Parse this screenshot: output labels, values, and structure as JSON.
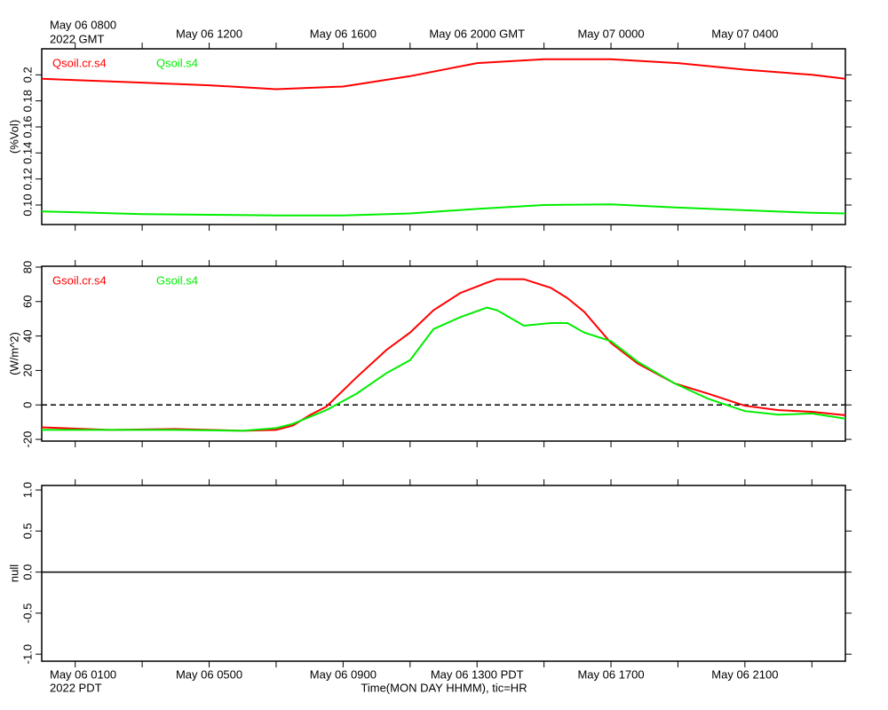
{
  "chart_data": [
    {
      "type": "line",
      "ylabel": "(%Vol)",
      "xlim": [
        0,
        24
      ],
      "ylim": [
        0.085,
        0.22
      ],
      "xticks": [
        {
          "value": 1,
          "label": "May 06 0800"
        },
        3,
        {
          "value": 5,
          "label": "May 06 1200"
        },
        7,
        {
          "value": 9,
          "label": "May 06 1600"
        },
        11,
        {
          "value": 13,
          "label": "May 06 2000 GMT"
        },
        15,
        {
          "value": 17,
          "label": "May 07 0000"
        },
        19,
        {
          "value": 21,
          "label": "May 07 0400"
        },
        23
      ],
      "xaxis_note": "2022 GMT",
      "xaxis_side": "top",
      "yticks": [
        {
          "value": 0.1,
          "label": "0.10"
        },
        0.12,
        {
          "value": 0.14,
          "label": "0.14"
        },
        0.16,
        {
          "value": 0.18,
          "label": "0.18"
        },
        0.2
      ],
      "x": [
        0,
        1,
        3,
        5,
        7,
        9,
        11,
        13,
        15,
        17,
        19,
        21,
        23,
        24
      ],
      "series": [
        {
          "name": "Qsoil.cr.s4",
          "color": "#ff0000",
          "values": [
            0.197,
            0.196,
            0.194,
            0.192,
            0.189,
            0.191,
            0.199,
            0.209,
            0.212,
            0.212,
            0.209,
            0.204,
            0.2,
            0.197
          ]
        },
        {
          "name": "Qsoil.s4",
          "color": "#00ee00",
          "values": [
            0.095,
            0.0945,
            0.093,
            0.0925,
            0.092,
            0.092,
            0.0935,
            0.097,
            0.1,
            0.1005,
            0.098,
            0.096,
            0.094,
            0.0935
          ]
        }
      ]
    },
    {
      "type": "line",
      "ylabel": "(W/m^2)",
      "xlim": [
        0,
        24
      ],
      "ylim": [
        -21,
        80.5
      ],
      "xticks": [
        1,
        3,
        5,
        7,
        9,
        11,
        13,
        15,
        17,
        19,
        21,
        23
      ],
      "yticks": [
        -20,
        0,
        20,
        40,
        60,
        80
      ],
      "hline": 0,
      "hline_style": "dashed",
      "x": [
        0,
        2,
        4,
        6,
        7,
        7.5,
        8,
        8.5,
        9.4,
        10.3,
        11,
        11.7,
        12.5,
        13.3,
        13.6,
        14.4,
        15.2,
        15.7,
        16.2,
        17,
        17.8,
        18.9,
        19.9,
        21,
        22,
        23,
        24
      ],
      "series": [
        {
          "name": "Gsoil.cr.s4",
          "color": "#ff0000",
          "values": [
            -13,
            -14.5,
            -14,
            -15,
            -14.5,
            -12,
            -6,
            -1,
            16,
            32,
            42,
            55,
            65,
            71,
            73,
            73,
            68,
            62,
            54,
            36,
            24,
            12.5,
            6.5,
            -0.5,
            -3,
            -4,
            -6
          ]
        },
        {
          "name": "Gsoil.s4",
          "color": "#00ee00",
          "values": [
            -14.5,
            -14.5,
            -14.5,
            -15,
            -13.5,
            -11,
            -7,
            -3,
            6.5,
            18.5,
            26,
            44,
            51,
            56.5,
            55,
            46,
            47.5,
            47.5,
            42,
            37,
            25,
            12.5,
            3.6,
            -3.6,
            -5.7,
            -5,
            -8
          ]
        }
      ]
    },
    {
      "type": "line",
      "ylabel": "null",
      "xlim": [
        0,
        24
      ],
      "ylim": [
        -1.085,
        1.055
      ],
      "xticks": [
        {
          "value": 1,
          "label": "May 06 0100"
        },
        3,
        {
          "value": 5,
          "label": "May 06 0500"
        },
        7,
        {
          "value": 9,
          "label": "May 06 0900"
        },
        11,
        {
          "value": 13,
          "label": "May 06 1300 PDT"
        },
        15,
        {
          "value": 17,
          "label": "May 06 1700"
        },
        19,
        {
          "value": 21,
          "label": "May 06 2100"
        },
        23
      ],
      "xaxis_note": "2022 PDT",
      "xaxis_side": "bottom",
      "xlabel": "Time(MON DAY HHMM), tic=HR",
      "yticks": [
        {
          "value": -1,
          "label": "-1.0"
        },
        {
          "value": -0.5,
          "label": "-0.5"
        },
        {
          "value": 0,
          "label": "0.0"
        },
        {
          "value": 0.5,
          "label": "0.5"
        },
        {
          "value": 1,
          "label": "1.0"
        }
      ],
      "hline": 0,
      "hline_style": "solid",
      "series": []
    }
  ]
}
